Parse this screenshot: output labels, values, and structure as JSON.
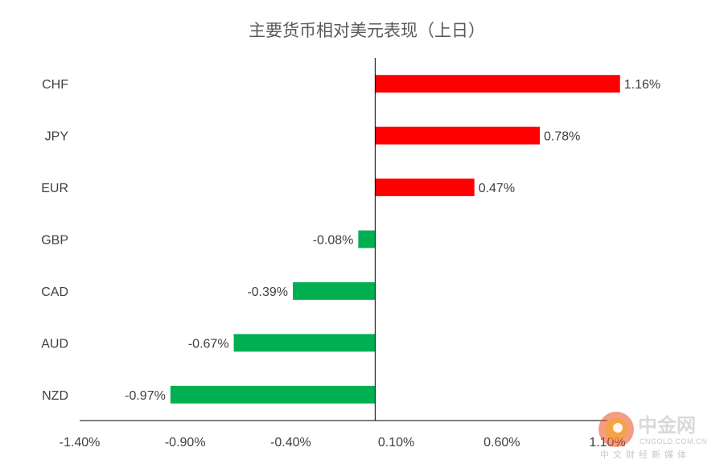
{
  "chart_data": {
    "type": "bar",
    "orientation": "horizontal",
    "title": "主要货币相对美元表现（上日）",
    "categories": [
      "CHF",
      "JPY",
      "EUR",
      "GBP",
      "CAD",
      "AUD",
      "NZD"
    ],
    "values": [
      1.16,
      0.78,
      0.47,
      -0.08,
      -0.39,
      -0.67,
      -0.97
    ],
    "data_labels": [
      "1.16%",
      "0.78%",
      "0.47%",
      "-0.08%",
      "-0.39%",
      "-0.67%",
      "-0.97%"
    ],
    "xlim": [
      -1.4,
      1.1
    ],
    "x_ticks": [
      "-1.40%",
      "-0.90%",
      "-0.40%",
      "0.10%",
      "0.60%",
      "1.10%"
    ],
    "x_tick_values": [
      -1.4,
      -0.9,
      -0.4,
      0.1,
      0.6,
      1.1
    ],
    "colors": {
      "positive": "#ff0000",
      "negative": "#00b050",
      "axis": "#000000",
      "text": "#404040"
    },
    "grid": false,
    "legend": "none"
  },
  "watermark": {
    "name": "中金网",
    "url": "CNGOLD.COM.CN",
    "tagline": "中文财经新媒体",
    "logo_icon": "cngold-logo-icon"
  }
}
